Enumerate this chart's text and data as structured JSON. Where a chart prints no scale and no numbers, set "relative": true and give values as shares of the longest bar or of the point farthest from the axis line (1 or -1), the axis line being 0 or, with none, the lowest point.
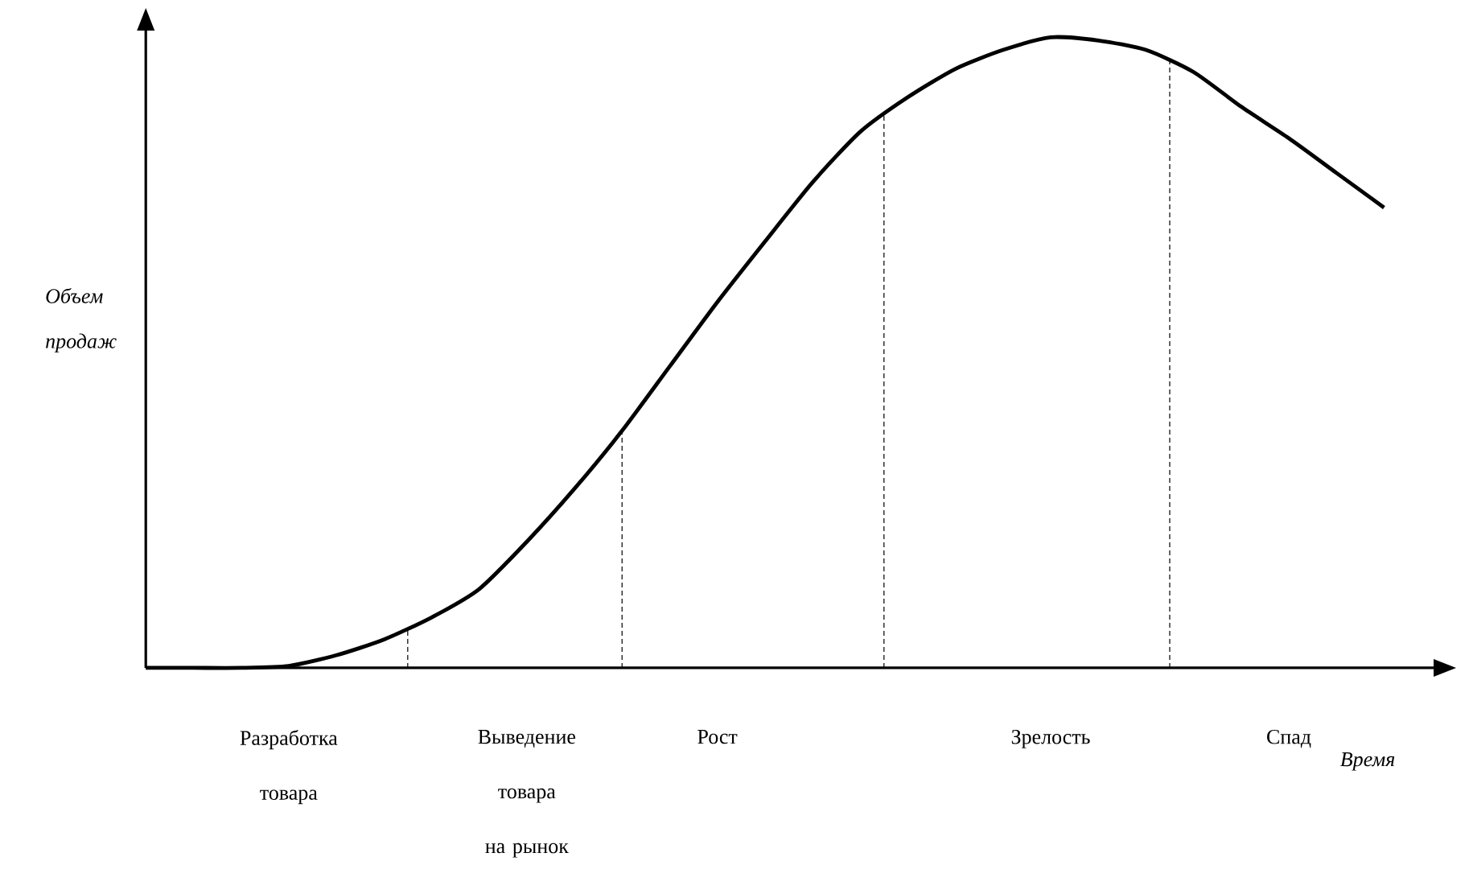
{
  "chart_data": {
    "type": "line",
    "relative": true,
    "color": "#000000",
    "ylabel": "Объем продаж",
    "xlabel": "Время",
    "categories": [
      null,
      null,
      null,
      "Разработка товара",
      null,
      null,
      null,
      null,
      "Выведение товара на рынок",
      null,
      null,
      null,
      "Рост",
      null,
      null,
      null,
      null,
      null,
      null,
      "Зрелость",
      null,
      null,
      null,
      null,
      "Спад",
      null,
      null
    ],
    "values": [
      0,
      0,
      0,
      0.003,
      0.02,
      0.045,
      0.08,
      0.125,
      0.2,
      0.284,
      0.376,
      0.478,
      0.58,
      0.676,
      0.77,
      0.85,
      0.905,
      0.95,
      0.98,
      1.0,
      0.995,
      0.98,
      0.945,
      0.89,
      0.84,
      0.785,
      0.73
    ]
  }
}
